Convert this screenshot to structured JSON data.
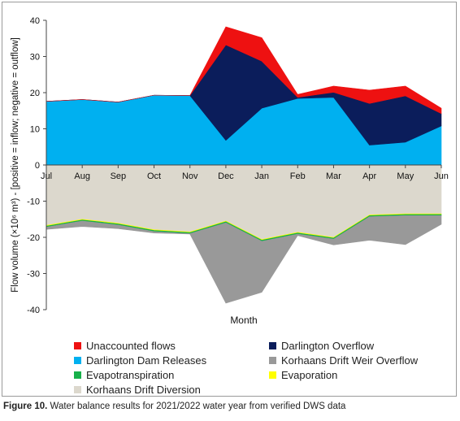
{
  "caption": {
    "label": "Figure 10.",
    "text": "Water balance results for 2021/2022 water year from verified DWS data"
  },
  "chart_data": {
    "type": "area",
    "title": "",
    "xlabel": "Month",
    "ylabel": "Flow volume (×10⁶ m³) - [positive = inflow; negative = outflow]",
    "ylim": [
      -40,
      40
    ],
    "yticks": [
      -40,
      -30,
      -20,
      -10,
      0,
      10,
      20,
      30,
      40
    ],
    "grid": false,
    "legend_position": "bottom",
    "categories": [
      "Jul",
      "Aug",
      "Sep",
      "Oct",
      "Nov",
      "Dec",
      "Jan",
      "Feb",
      "Mar",
      "Apr",
      "May",
      "Jun"
    ],
    "series": [
      {
        "name": "Darlington Dam Releases",
        "color": "#00b0f0",
        "values": [
          17.6,
          18.1,
          17.4,
          19.3,
          19.2,
          6.8,
          15.7,
          18.4,
          18.7,
          5.5,
          6.3,
          10.8
        ]
      },
      {
        "name": "Darlington Overflow",
        "color": "#0b1d5b",
        "values": [
          0,
          0,
          0,
          0,
          0,
          26.4,
          13.0,
          0.3,
          1.4,
          11.5,
          12.8,
          3.4
        ]
      },
      {
        "name": "Unaccounted flows",
        "color": "#ee1111",
        "values": [
          0,
          0,
          0,
          0,
          0,
          5.0,
          6.5,
          0.8,
          1.7,
          3.7,
          2.7,
          1.5
        ]
      },
      {
        "name": "Korhaans Drift Diversion",
        "color": "#dcd8cd",
        "values": [
          -16.7,
          -15.0,
          -16.1,
          -17.9,
          -18.5,
          -15.5,
          -20.6,
          -18.6,
          -20.0,
          -13.8,
          -13.5,
          -13.5
        ]
      },
      {
        "name": "Evaporation",
        "color": "#ffff00",
        "values": [
          -0.2,
          -0.2,
          -0.2,
          -0.2,
          -0.2,
          -0.2,
          -0.2,
          -0.2,
          -0.2,
          -0.2,
          -0.2,
          -0.2
        ]
      },
      {
        "name": "Evapotranspiration",
        "color": "#17b04a",
        "values": [
          -0.3,
          -0.3,
          -0.3,
          -0.3,
          -0.3,
          -0.3,
          -0.3,
          -0.3,
          -0.3,
          -0.3,
          -0.3,
          -0.3
        ]
      },
      {
        "name": "Korhaans Drift Weir Overflow",
        "color": "#999999",
        "values": [
          -0.6,
          -1.5,
          -1.0,
          -0.4,
          -0.1,
          -22.2,
          -14.1,
          -0.4,
          -1.6,
          -6.5,
          -8.0,
          -2.4
        ]
      }
    ],
    "legend": [
      {
        "name": "Unaccounted flows",
        "color": "#ee1111"
      },
      {
        "name": "Darlington Overflow",
        "color": "#0b1d5b"
      },
      {
        "name": "Darlington Dam Releases",
        "color": "#00b0f0"
      },
      {
        "name": "Korhaans Drift Weir Overflow",
        "color": "#999999"
      },
      {
        "name": "Evapotranspiration",
        "color": "#17b04a"
      },
      {
        "name": "Evaporation",
        "color": "#ffff00"
      },
      {
        "name": "Korhaans Drift Diversion",
        "color": "#dcd8cd"
      }
    ]
  }
}
